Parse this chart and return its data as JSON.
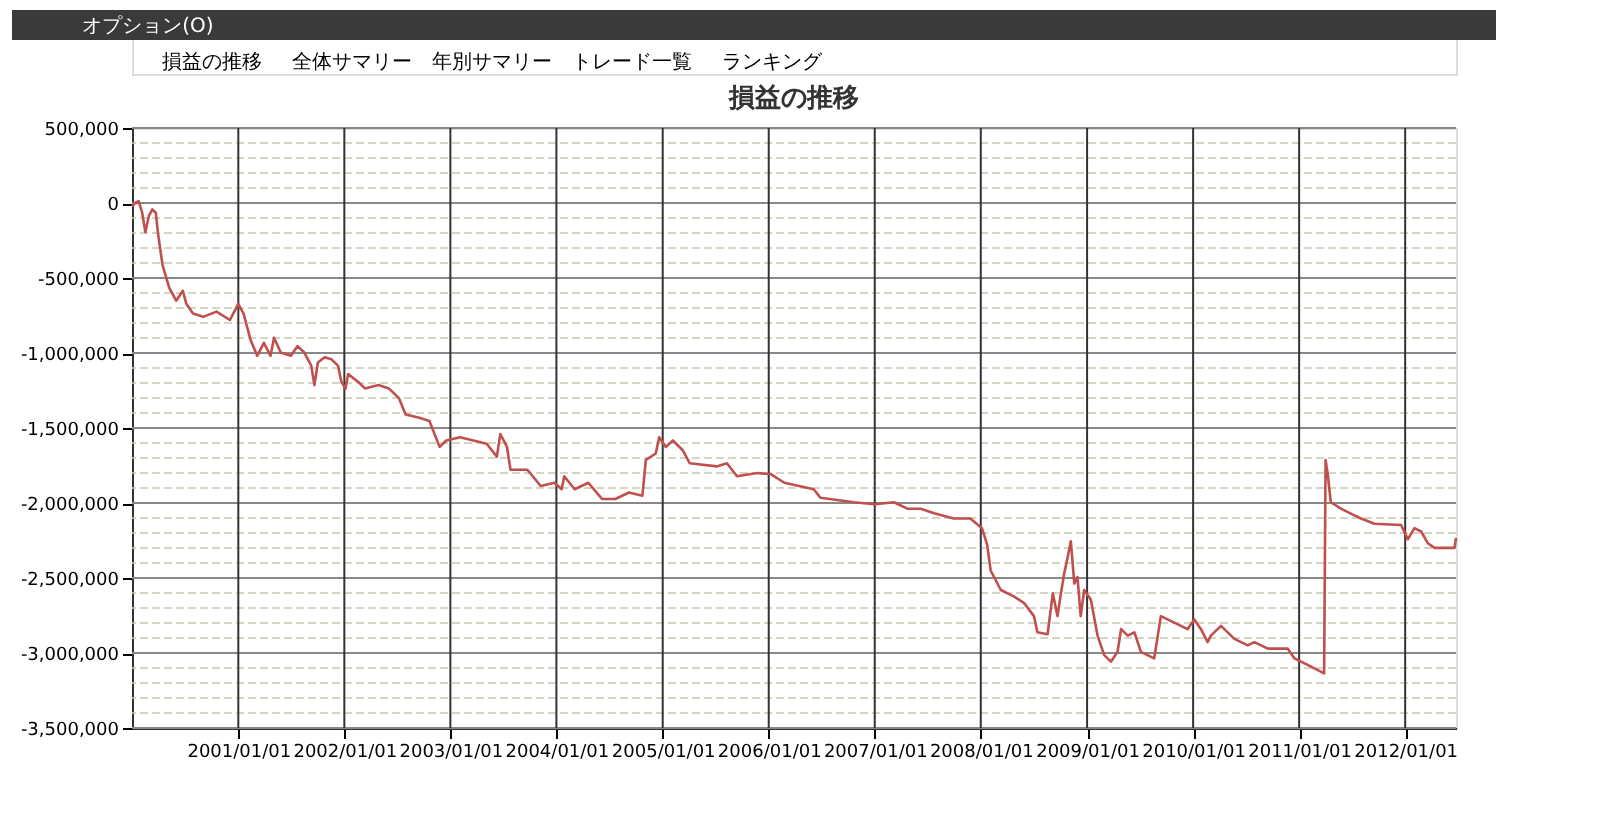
{
  "chart_data": {
    "type": "line",
    "title": "損益の推移",
    "annotations": [
      "オプション(O)",
      "損益の推移",
      "全体サマリー",
      "年別サマリー",
      "トレード一覧",
      "ランキング"
    ],
    "x": [
      "2000-01-01",
      "2000-01-12",
      "2000-01-24",
      "2000-02-05",
      "2000-02-16",
      "2000-02-28",
      "2000-03-11",
      "2000-03-23",
      "2000-03-30",
      "2000-04-15",
      "2000-05-08",
      "2000-06-01",
      "2000-06-24",
      "2000-07-06",
      "2000-07-29",
      "2000-09-02",
      "2000-10-18",
      "2000-12-03",
      "2001-01-01",
      "2001-01-19",
      "2001-02-12",
      "2001-03-07",
      "2001-03-30",
      "2001-04-22",
      "2001-05-04",
      "2001-05-27",
      "2001-07-01",
      "2001-07-24",
      "2001-08-16",
      "2001-09-09",
      "2001-09-20",
      "2001-10-02",
      "2001-10-25",
      "2001-11-17",
      "2001-12-10",
      "2001-12-22",
      "2002-01-05",
      "2002-01-14",
      "2002-02-18",
      "2002-03-13",
      "2002-04-29",
      "2002-06-03",
      "2002-07-08",
      "2002-07-31",
      "2002-09-16",
      "2002-10-21",
      "2002-11-25",
      "2002-12-18",
      "2003-02-03",
      "2003-03-21",
      "2003-05-06",
      "2003-06-10",
      "2003-06-22",
      "2003-07-15",
      "2003-07-27",
      "2003-09-23",
      "2003-11-08",
      "2003-12-25",
      "2004-01-19",
      "2004-01-28",
      "2004-03-04",
      "2004-04-20",
      "2004-06-06",
      "2004-07-22",
      "2004-09-07",
      "2004-10-23",
      "2004-11-04",
      "2004-12-08",
      "2004-12-20",
      "2005-01-12",
      "2005-02-05",
      "2005-03-11",
      "2005-04-04",
      "2005-07-06",
      "2005-08-10",
      "2005-09-14",
      "2005-11-22",
      "2006-01-08",
      "2006-02-24",
      "2006-06-05",
      "2006-06-28",
      "2006-10-21",
      "2007-01-01",
      "2007-03-08",
      "2007-04-23",
      "2007-06-08",
      "2007-07-24",
      "2007-09-30",
      "2007-11-26",
      "2008-01-05",
      "2008-01-23",
      "2008-02-04",
      "2008-03-10",
      "2008-04-25",
      "2008-05-29",
      "2008-07-02",
      "2008-07-14",
      "2008-08-18",
      "2008-09-05",
      "2008-09-21",
      "2008-10-03",
      "2008-10-14",
      "2008-10-26",
      "2008-11-06",
      "2008-11-18",
      "2008-11-29",
      "2008-12-10",
      "2008-12-22",
      "2009-01-14",
      "2009-02-06",
      "2009-03-01",
      "2009-03-24",
      "2009-04-16",
      "2009-04-28",
      "2009-05-21",
      "2009-06-13",
      "2009-07-05",
      "2009-08-20",
      "2009-09-12",
      "2009-10-28",
      "2009-12-13",
      "2010-01-05",
      "2010-01-28",
      "2010-02-20",
      "2010-03-03",
      "2010-04-07",
      "2010-05-23",
      "2010-07-08",
      "2010-07-31",
      "2010-09-15",
      "2010-11-23",
      "2010-12-16",
      "2011-01-30",
      "2011-03-28",
      "2011-04-02",
      "2011-04-09",
      "2011-04-20",
      "2011-05-25",
      "2011-07-10",
      "2011-08-02",
      "2011-09-17",
      "2011-12-18",
      "2012-01-10",
      "2012-02-02",
      "2012-02-25",
      "2012-03-19",
      "2012-04-11",
      "2012-06-19",
      "2012-06-24"
    ],
    "series": [
      {
        "color": "#c0504d",
        "values": [
          -22000,
          0,
          13000,
          -65000,
          -195000,
          -87000,
          -43000,
          -65000,
          -195000,
          -412000,
          -564000,
          -651000,
          -585000,
          -672000,
          -737000,
          -759000,
          -724000,
          -780000,
          -672000,
          -737000,
          -911000,
          -1019000,
          -932000,
          -1019000,
          -898000,
          -997000,
          -1019000,
          -954000,
          -997000,
          -1084000,
          -1214000,
          -1063000,
          -1028000,
          -1041000,
          -1084000,
          -1193000,
          -1236000,
          -1141000,
          -1193000,
          -1236000,
          -1214000,
          -1236000,
          -1301000,
          -1410000,
          -1431000,
          -1453000,
          -1626000,
          -1583000,
          -1561000,
          -1583000,
          -1605000,
          -1691000,
          -1540000,
          -1626000,
          -1778000,
          -1778000,
          -1887000,
          -1865000,
          -1908000,
          -1822000,
          -1908000,
          -1865000,
          -1973000,
          -1973000,
          -1930000,
          -1952000,
          -1713000,
          -1670000,
          -1561000,
          -1626000,
          -1583000,
          -1648000,
          -1735000,
          -1756000,
          -1735000,
          -1822000,
          -1800000,
          -1808000,
          -1865000,
          -1908000,
          -1965000,
          -1995000,
          -2008000,
          -1995000,
          -2038000,
          -2038000,
          -2069000,
          -2103000,
          -2103000,
          -2168000,
          -2277000,
          -2450000,
          -2580000,
          -2624000,
          -2667000,
          -2754000,
          -2862000,
          -2875000,
          -2602000,
          -2754000,
          -2602000,
          -2472000,
          -2364000,
          -2255000,
          -2537000,
          -2494000,
          -2754000,
          -2580000,
          -2645000,
          -2884000,
          -3014000,
          -3058000,
          -2992000,
          -2841000,
          -2884000,
          -2862000,
          -2992000,
          -3036000,
          -2754000,
          -2797000,
          -2841000,
          -2776000,
          -2841000,
          -2927000,
          -2884000,
          -2819000,
          -2906000,
          -2949000,
          -2927000,
          -2971000,
          -2971000,
          -3036000,
          -3079000,
          -3136000,
          -1713000,
          -1800000,
          -1995000,
          -2038000,
          -2082000,
          -2103000,
          -2138000,
          -2147000,
          -2242000,
          -2168000,
          -2190000,
          -2268000,
          -2299000,
          -2299000,
          -2233000
        ]
      }
    ],
    "xlim": [
      "2000-01-01",
      "2012-06-24"
    ],
    "xticks": [
      {
        "value": "2001-01-01",
        "label": "2001/01/01"
      },
      {
        "value": "2002-01-01",
        "label": "2002/01/01"
      },
      {
        "value": "2003-01-01",
        "label": "2003/01/01"
      },
      {
        "value": "2004-01-01",
        "label": "2004/01/01"
      },
      {
        "value": "2005-01-01",
        "label": "2005/01/01"
      },
      {
        "value": "2006-01-01",
        "label": "2006/01/01"
      },
      {
        "value": "2007-01-01",
        "label": "2007/01/01"
      },
      {
        "value": "2008-01-01",
        "label": "2008/01/01"
      },
      {
        "value": "2009-01-01",
        "label": "2009/01/01"
      },
      {
        "value": "2010-01-01",
        "label": "2010/01/01"
      },
      {
        "value": "2011-01-01",
        "label": "2011/01/01"
      },
      {
        "value": "2012-01-01",
        "label": "2012/01/01"
      }
    ],
    "ylim": [
      -3500000,
      500000
    ],
    "yticks": [
      {
        "value": -3500000,
        "label": "-3,500,000"
      },
      {
        "value": -3400000,
        "label": null
      },
      {
        "value": -3300000,
        "label": null
      },
      {
        "value": -3200000,
        "label": null
      },
      {
        "value": -3100000,
        "label": null
      },
      {
        "value": -3000000,
        "label": "-3,000,000"
      },
      {
        "value": -2900000,
        "label": null
      },
      {
        "value": -2800000,
        "label": null
      },
      {
        "value": -2700000,
        "label": null
      },
      {
        "value": -2600000,
        "label": null
      },
      {
        "value": -2500000,
        "label": "-2,500,000"
      },
      {
        "value": -2400000,
        "label": null
      },
      {
        "value": -2300000,
        "label": null
      },
      {
        "value": -2200000,
        "label": null
      },
      {
        "value": -2100000,
        "label": null
      },
      {
        "value": -2000000,
        "label": "-2,000,000"
      },
      {
        "value": -1900000,
        "label": null
      },
      {
        "value": -1800000,
        "label": null
      },
      {
        "value": -1700000,
        "label": null
      },
      {
        "value": -1600000,
        "label": null
      },
      {
        "value": -1500000,
        "label": "-1,500,000"
      },
      {
        "value": -1400000,
        "label": null
      },
      {
        "value": -1300000,
        "label": null
      },
      {
        "value": -1200000,
        "label": null
      },
      {
        "value": -1100000,
        "label": null
      },
      {
        "value": -1000000,
        "label": "-1,000,000"
      },
      {
        "value": -900000,
        "label": null
      },
      {
        "value": -800000,
        "label": null
      },
      {
        "value": -700000,
        "label": null
      },
      {
        "value": -600000,
        "label": null
      },
      {
        "value": -500000,
        "label": "-500,000"
      },
      {
        "value": -400000,
        "label": null
      },
      {
        "value": -300000,
        "label": null
      },
      {
        "value": -200000,
        "label": null
      },
      {
        "value": -100000,
        "label": null
      },
      0,
      {
        "value": 100000,
        "label": null
      },
      {
        "value": 200000,
        "label": null
      },
      {
        "value": 300000,
        "label": null
      },
      {
        "value": 400000,
        "label": null
      },
      {
        "value": 500000,
        "label": "500,000"
      }
    ],
    "grid": true,
    "marker": "none",
    "line_style": "solid"
  }
}
